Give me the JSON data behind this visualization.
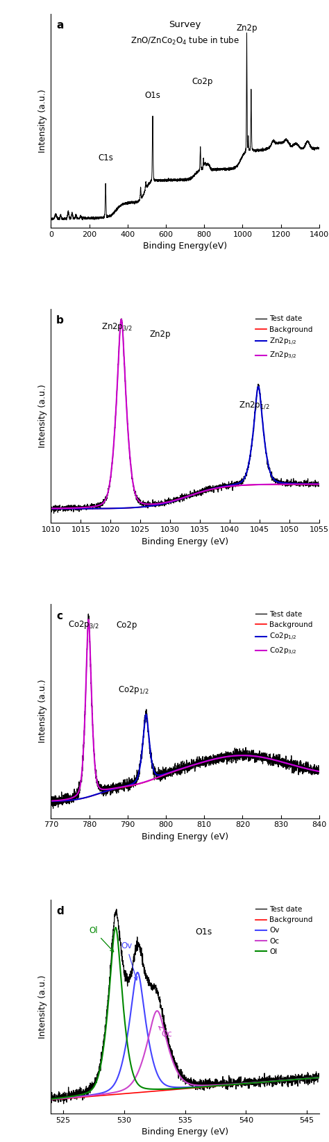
{
  "panel_a": {
    "label": "a",
    "title_line1": "Survey",
    "title_line2": "ZnO/ZnCo$_2$O$_4$ tube in tube",
    "xlabel": "Binding Energy(eV)",
    "ylabel": "Intensity (a.u.)",
    "xlim": [
      0,
      1400
    ],
    "xticks": [
      0,
      200,
      400,
      600,
      800,
      1000,
      1200,
      1400
    ]
  },
  "panel_b": {
    "label": "b",
    "title": "Zn2p",
    "xlabel": "Binding Energy (eV)",
    "ylabel": "Intensity (a.u.)",
    "xlim": [
      1010,
      1055
    ],
    "xticks": [
      1010,
      1015,
      1020,
      1025,
      1030,
      1035,
      1040,
      1045,
      1050,
      1055
    ],
    "legend": [
      "Test date",
      "Background",
      "Zn2p$_{1/2}$",
      "Zn2p$_{3/2}$"
    ],
    "legend_colors": [
      "#000000",
      "#ff0000",
      "#0000ff",
      "#cc00cc"
    ]
  },
  "panel_c": {
    "label": "c",
    "title": "Co2p",
    "xlabel": "Binding Energy (eV)",
    "ylabel": "Intensity (a.u.)",
    "xlim": [
      770,
      840
    ],
    "xticks": [
      770,
      780,
      790,
      800,
      810,
      820,
      830,
      840
    ],
    "legend": [
      "Test date",
      "Background",
      "Co2p$_{1/2}$",
      "Co2p$_{3/2}$"
    ],
    "legend_colors": [
      "#000000",
      "#ff0000",
      "#0000ff",
      "#cc00cc"
    ]
  },
  "panel_d": {
    "label": "d",
    "title": "O1s",
    "xlabel": "Binding Energy (eV)",
    "ylabel": "Intensity (a.u.)",
    "xlim": [
      524,
      546
    ],
    "xticks": [
      525,
      530,
      535,
      540,
      545
    ],
    "legend": [
      "Test date",
      "Background",
      "Ov",
      "Oc",
      "Ol"
    ],
    "legend_colors": [
      "#000000",
      "#ff0000",
      "#4444ff",
      "#cc44cc",
      "#008800"
    ]
  }
}
